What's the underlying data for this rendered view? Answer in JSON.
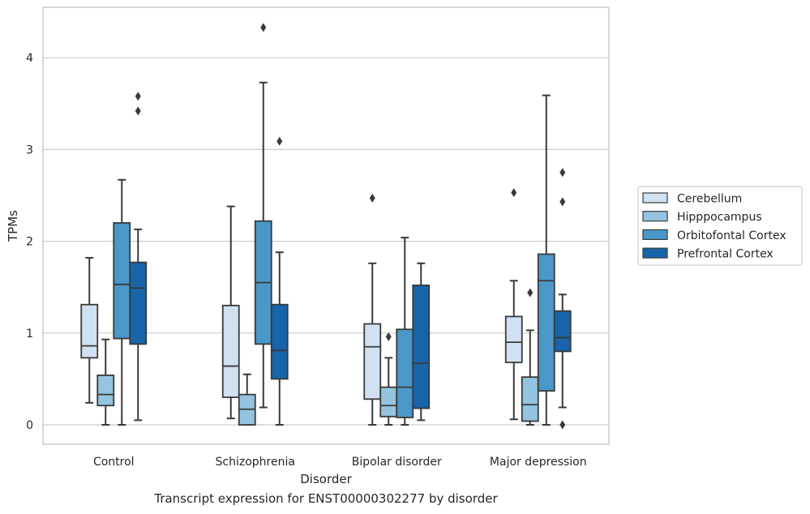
{
  "chart_data": {
    "type": "box",
    "title": "",
    "caption": "Transcript expression for ENST00000302277 by disorder",
    "xlabel": "Disorder",
    "ylabel": "TPMs",
    "ylim": [
      -0.2,
      4.55
    ],
    "yticks": [
      0,
      1,
      2,
      3,
      4
    ],
    "grid": true,
    "legend_position": "right",
    "categories": [
      "Control",
      "Schizophrenia",
      "Bipolar disorder",
      "Major depression"
    ],
    "series": [
      {
        "name": "Cerebellum",
        "color": "#d0e1f2",
        "boxes": [
          {
            "whislo": 0.24,
            "q1": 0.73,
            "med": 0.86,
            "q3": 1.31,
            "whishi": 1.82,
            "fliers": []
          },
          {
            "whislo": 0.07,
            "q1": 0.3,
            "med": 0.64,
            "q3": 1.3,
            "whishi": 2.38,
            "fliers": []
          },
          {
            "whislo": 0.0,
            "q1": 0.28,
            "med": 0.85,
            "q3": 1.1,
            "whishi": 1.76,
            "fliers": [
              2.47
            ]
          },
          {
            "whislo": 0.06,
            "q1": 0.68,
            "med": 0.9,
            "q3": 1.18,
            "whishi": 1.57,
            "fliers": [
              2.53
            ]
          }
        ]
      },
      {
        "name": "Hipppocampus",
        "color": "#94c4df",
        "boxes": [
          {
            "whislo": 0.0,
            "q1": 0.21,
            "med": 0.33,
            "q3": 0.54,
            "whishi": 0.93,
            "fliers": []
          },
          {
            "whislo": 0.0,
            "q1": 0.0,
            "med": 0.17,
            "q3": 0.33,
            "whishi": 0.55,
            "fliers": []
          },
          {
            "whislo": 0.0,
            "q1": 0.09,
            "med": 0.21,
            "q3": 0.41,
            "whishi": 0.73,
            "fliers": [
              0.96
            ]
          },
          {
            "whislo": 0.0,
            "q1": 0.04,
            "med": 0.22,
            "q3": 0.52,
            "whishi": 1.03,
            "fliers": [
              1.44
            ]
          }
        ]
      },
      {
        "name": "Orbitofontal Cortex",
        "color": "#4a98c9",
        "boxes": [
          {
            "whislo": 0.0,
            "q1": 0.94,
            "med": 1.53,
            "q3": 2.2,
            "whishi": 2.67,
            "fliers": []
          },
          {
            "whislo": 0.19,
            "q1": 0.88,
            "med": 1.55,
            "q3": 2.22,
            "whishi": 3.73,
            "fliers": [
              4.33
            ]
          },
          {
            "whislo": 0.0,
            "q1": 0.08,
            "med": 0.41,
            "q3": 1.04,
            "whishi": 2.04,
            "fliers": []
          },
          {
            "whislo": 0.0,
            "q1": 0.37,
            "med": 1.57,
            "q3": 1.86,
            "whishi": 3.59,
            "fliers": []
          }
        ]
      },
      {
        "name": "Prefrontal Cortex",
        "color": "#1764ab",
        "boxes": [
          {
            "whislo": 0.05,
            "q1": 0.88,
            "med": 1.49,
            "q3": 1.77,
            "whishi": 2.13,
            "fliers": [
              3.42,
              3.58
            ]
          },
          {
            "whislo": 0.0,
            "q1": 0.5,
            "med": 0.81,
            "q3": 1.31,
            "whishi": 1.88,
            "fliers": [
              3.09
            ]
          },
          {
            "whislo": 0.05,
            "q1": 0.18,
            "med": 0.67,
            "q3": 1.52,
            "whishi": 1.76,
            "fliers": []
          },
          {
            "whislo": 0.19,
            "q1": 0.8,
            "med": 0.95,
            "q3": 1.24,
            "whishi": 1.42,
            "fliers": [
              0.0,
              2.43,
              2.75
            ]
          }
        ]
      }
    ]
  }
}
